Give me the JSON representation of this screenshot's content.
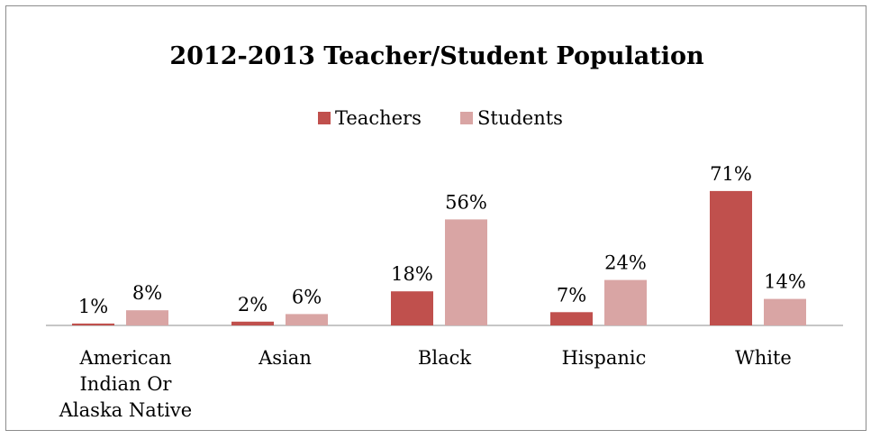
{
  "chart_data": {
    "type": "bar",
    "title": "2012-2013 Teacher/Student Population",
    "xlabel": "",
    "ylabel": "",
    "ylim": [
      0,
      80
    ],
    "grid": false,
    "legend_position": "top",
    "categories": [
      [
        "American",
        "Indian Or",
        "Alaska Native"
      ],
      [
        "Asian"
      ],
      [
        "Black"
      ],
      [
        "Hispanic"
      ],
      [
        "White"
      ]
    ],
    "series": [
      {
        "name": "Teachers",
        "color": "#c0504d",
        "values": [
          1,
          2,
          18,
          7,
          71
        ],
        "labels": [
          "1%",
          "2%",
          "18%",
          "7%",
          "71%"
        ]
      },
      {
        "name": "Students",
        "color": "#d9a5a4",
        "values": [
          8,
          6,
          56,
          24,
          14
        ],
        "labels": [
          "8%",
          "6%",
          "56%",
          "24%",
          "14%"
        ]
      }
    ]
  },
  "colors": {
    "axis": "#8c8c8c",
    "border": "#8c8c8c"
  }
}
